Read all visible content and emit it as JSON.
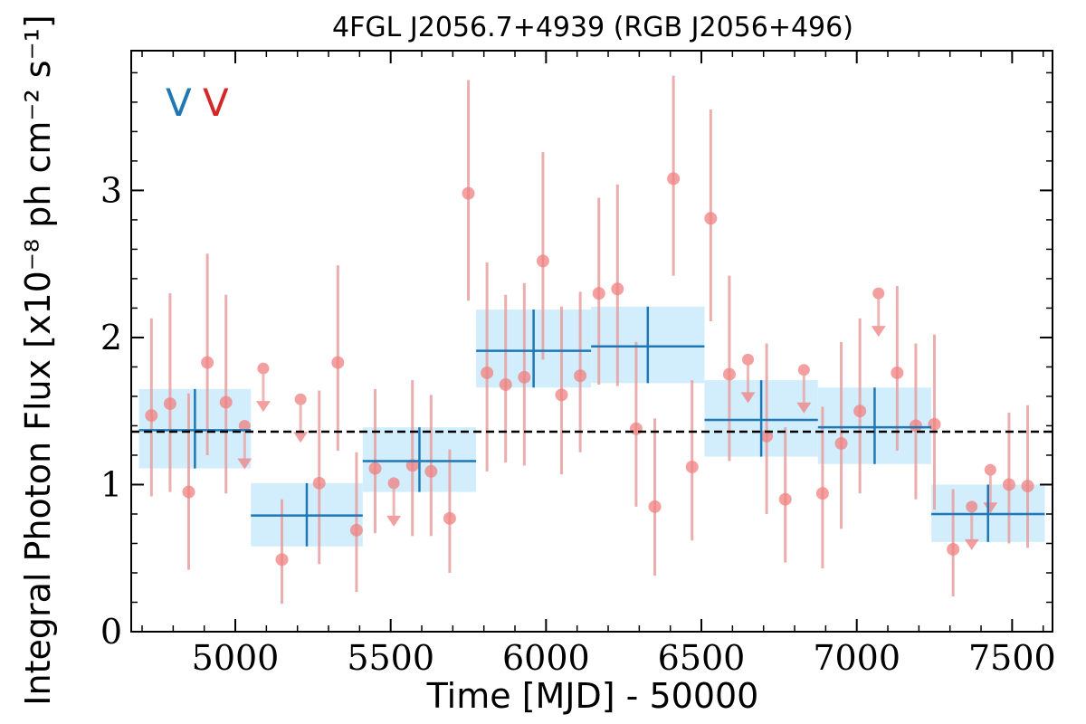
{
  "chart_data": {
    "type": "scatter",
    "title": "4FGL J2056.7+4939 (RGB J2056+496)",
    "xlabel": "Time [MJD] - 50000",
    "ylabel": "Integral Photon Flux [x10⁻⁸ ph cm⁻² s⁻¹]",
    "xlim": [
      4665,
      7630
    ],
    "ylim": [
      0,
      3.95
    ],
    "x_ticks": [
      5000,
      5500,
      6000,
      6500,
      7000,
      7500
    ],
    "y_ticks": [
      0,
      1,
      2,
      3
    ],
    "grid": false,
    "legend_labels": [
      "V",
      "V"
    ],
    "legend_colors": [
      "#1f77b4",
      "#d62728"
    ],
    "legend_position": "top-left",
    "mean_flux": 1.36,
    "colors": {
      "binned": "#1f77b4",
      "binned_band": "#d2eefc",
      "fine": "#f08080",
      "fine_bar": "#e8a0a0",
      "mean_line": "#000000"
    },
    "series": [
      {
        "type": "binned",
        "points": [
          {
            "x_start": 4690,
            "x_end": 5050,
            "y": 1.37,
            "y_low": 1.11,
            "y_high": 1.65
          },
          {
            "x_start": 5050,
            "x_end": 5410,
            "y": 0.79,
            "y_low": 0.58,
            "y_high": 1.01
          },
          {
            "x_start": 5410,
            "x_end": 5775,
            "y": 1.16,
            "y_low": 0.95,
            "y_high": 1.39
          },
          {
            "x_start": 5775,
            "x_end": 6145,
            "y": 1.91,
            "y_low": 1.66,
            "y_high": 2.19
          },
          {
            "x_start": 6145,
            "x_end": 6510,
            "y": 1.94,
            "y_low": 1.69,
            "y_high": 2.21
          },
          {
            "x_start": 6510,
            "x_end": 6875,
            "y": 1.44,
            "y_low": 1.19,
            "y_high": 1.71
          },
          {
            "x_start": 6875,
            "x_end": 7240,
            "y": 1.39,
            "y_low": 1.14,
            "y_high": 1.66
          },
          {
            "x_start": 7240,
            "x_end": 7605,
            "y": 0.8,
            "y_low": 0.61,
            "y_high": 1.0
          }
        ]
      },
      {
        "type": "fine",
        "points": [
          {
            "x": 4730,
            "y": 1.47,
            "y_low": 0.92,
            "y_high": 2.13
          },
          {
            "x": 4790,
            "y": 1.55,
            "y_low": 0.95,
            "y_high": 2.3
          },
          {
            "x": 4850,
            "y": 0.95,
            "y_low": 0.42,
            "y_high": 1.62
          },
          {
            "x": 4910,
            "y": 1.83,
            "y_low": 1.2,
            "y_high": 2.57
          },
          {
            "x": 4970,
            "y": 1.56,
            "y_low": 0.94,
            "y_high": 2.29
          },
          {
            "x": 5030,
            "y": 1.4,
            "y_upper_limit": true
          },
          {
            "x": 5090,
            "y": 1.79,
            "y_upper_limit": true
          },
          {
            "x": 5150,
            "y": 0.49,
            "y_low": 0.19,
            "y_high": 0.9
          },
          {
            "x": 5210,
            "y": 1.58,
            "y_upper_limit": true
          },
          {
            "x": 5270,
            "y": 1.01,
            "y_low": 0.46,
            "y_high": 1.64
          },
          {
            "x": 5330,
            "y": 1.83,
            "y_low": 1.23,
            "y_high": 2.49
          },
          {
            "x": 5390,
            "y": 0.69,
            "y_low": 0.27,
            "y_high": 1.22
          },
          {
            "x": 5450,
            "y": 1.11,
            "y_low": 0.67,
            "y_high": 1.65
          },
          {
            "x": 5510,
            "y": 1.01,
            "y_upper_limit": true
          },
          {
            "x": 5570,
            "y": 1.13,
            "y_low": 0.65,
            "y_high": 1.71
          },
          {
            "x": 5630,
            "y": 1.09,
            "y_low": 0.65,
            "y_high": 1.61
          },
          {
            "x": 5690,
            "y": 0.77,
            "y_low": 0.4,
            "y_high": 1.24
          },
          {
            "x": 5750,
            "y": 2.98,
            "y_low": 2.25,
            "y_high": 3.75
          },
          {
            "x": 5810,
            "y": 1.76,
            "y_low": 1.09,
            "y_high": 2.51
          },
          {
            "x": 5870,
            "y": 1.68,
            "y_low": 1.15,
            "y_high": 2.29
          },
          {
            "x": 5930,
            "y": 1.73,
            "y_low": 1.13,
            "y_high": 2.37
          },
          {
            "x": 5990,
            "y": 2.52,
            "y_low": 1.85,
            "y_high": 3.26
          },
          {
            "x": 6050,
            "y": 1.61,
            "y_low": 1.07,
            "y_high": 2.21
          },
          {
            "x": 6110,
            "y": 1.74,
            "y_low": 1.22,
            "y_high": 2.31
          },
          {
            "x": 6170,
            "y": 2.3,
            "y_low": 1.68,
            "y_high": 2.95
          },
          {
            "x": 6230,
            "y": 2.33,
            "y_low": 1.67,
            "y_high": 3.04
          },
          {
            "x": 6290,
            "y": 1.38,
            "y_low": 0.85,
            "y_high": 1.97
          },
          {
            "x": 6350,
            "y": 0.85,
            "y_low": 0.38,
            "y_high": 1.45
          },
          {
            "x": 6410,
            "y": 3.08,
            "y_low": 2.42,
            "y_high": 3.78
          },
          {
            "x": 6470,
            "y": 1.12,
            "y_low": 0.62,
            "y_high": 1.71
          },
          {
            "x": 6530,
            "y": 2.81,
            "y_low": 2.11,
            "y_high": 3.55
          },
          {
            "x": 6590,
            "y": 1.75,
            "y_low": 1.16,
            "y_high": 2.42
          },
          {
            "x": 6650,
            "y": 1.85,
            "y_upper_limit": true
          },
          {
            "x": 6710,
            "y": 1.33,
            "y_low": 0.8,
            "y_high": 1.96
          },
          {
            "x": 6770,
            "y": 0.9,
            "y_low": 0.47,
            "y_high": 1.39
          },
          {
            "x": 6830,
            "y": 1.78,
            "y_upper_limit": true
          },
          {
            "x": 6890,
            "y": 0.94,
            "y_low": 0.43,
            "y_high": 1.53
          },
          {
            "x": 6950,
            "y": 1.28,
            "y_low": 0.7,
            "y_high": 1.97
          },
          {
            "x": 7010,
            "y": 1.5,
            "y_low": 0.94,
            "y_high": 2.13
          },
          {
            "x": 7070,
            "y": 2.3,
            "y_upper_limit": true
          },
          {
            "x": 7130,
            "y": 1.76,
            "y_low": 1.23,
            "y_high": 2.35
          },
          {
            "x": 7190,
            "y": 1.4,
            "y_low": 0.9,
            "y_high": 1.96
          },
          {
            "x": 7250,
            "y": 1.41,
            "y_low": 0.83,
            "y_high": 2.02
          },
          {
            "x": 7310,
            "y": 0.56,
            "y_low": 0.24,
            "y_high": 0.97
          },
          {
            "x": 7370,
            "y": 0.85,
            "y_upper_limit": true
          },
          {
            "x": 7430,
            "y": 1.1,
            "y_upper_limit": true
          },
          {
            "x": 7490,
            "y": 1.0,
            "y_low": 0.6,
            "y_high": 1.49
          },
          {
            "x": 7550,
            "y": 0.99,
            "y_low": 0.57,
            "y_high": 1.54
          }
        ]
      }
    ]
  }
}
